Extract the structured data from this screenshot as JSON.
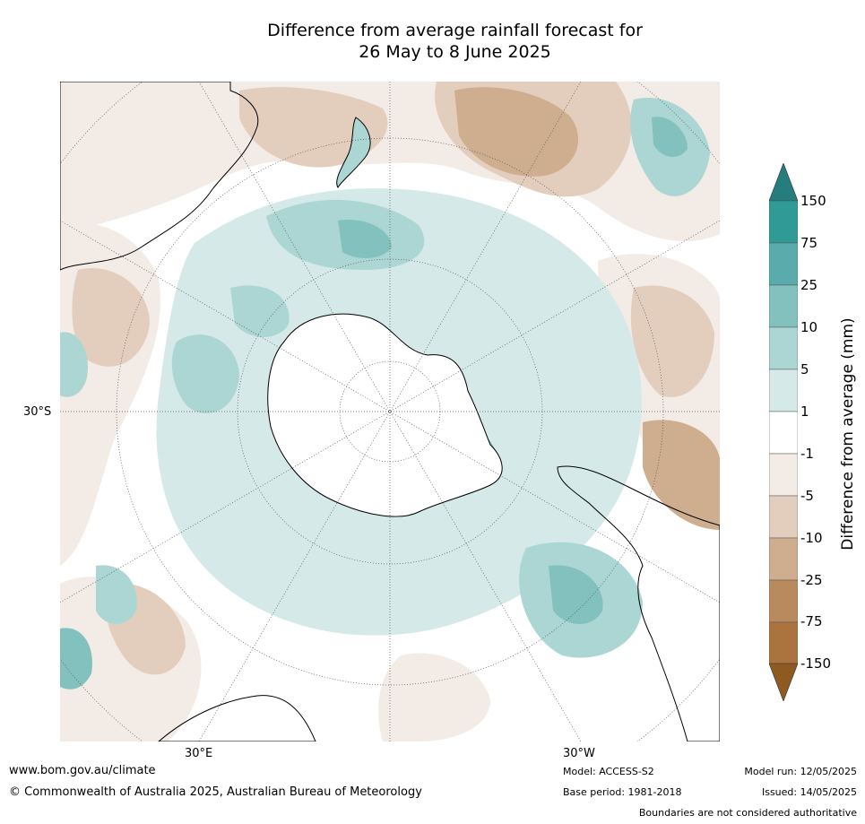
{
  "title_line1": "Difference from average rainfall forecast for",
  "title_line2": "26 May to 8 June 2025",
  "axis_labels": {
    "lat_left": "30°S",
    "lon_bottom_left": "30°E",
    "lon_bottom_right": "30°W"
  },
  "legend": {
    "title": "Difference from average (mm)",
    "ticks": [
      "150",
      "75",
      "25",
      "10",
      "5",
      "1",
      "-1",
      "-5",
      "-10",
      "-25",
      "-75",
      "-150"
    ],
    "bands": [
      {
        "range": ">150",
        "color": "#267d7d"
      },
      {
        "range": "75 to 150",
        "color": "#2f9a96"
      },
      {
        "range": "25 to 75",
        "color": "#5aabab"
      },
      {
        "range": "10 to 25",
        "color": "#83c1bf"
      },
      {
        "range": "5 to 10",
        "color": "#acd6d4"
      },
      {
        "range": "1 to 5",
        "color": "#d5e9e8"
      },
      {
        "range": "-1 to 1",
        "color": "#ffffff"
      },
      {
        "range": "-5 to -1",
        "color": "#f3ebe5"
      },
      {
        "range": "-10 to -5",
        "color": "#e3cebe"
      },
      {
        "range": "-25 to -10",
        "color": "#cfae8f"
      },
      {
        "range": "-75 to -25",
        "color": "#b98a5e"
      },
      {
        "range": "-150 to -75",
        "color": "#ab743f"
      },
      {
        "range": "<-150",
        "color": "#8f5a22"
      }
    ]
  },
  "footer": {
    "url": "www.bom.gov.au/climate",
    "copyright": "© Commonwealth of Australia 2025, Australian Bureau of Meteorology",
    "model": "Model: ACCESS-S2",
    "base_period": "Base period: 1981-2018",
    "model_run": "Model run: 12/05/2025",
    "issued": "Issued: 14/05/2025",
    "disclaimer": "Boundaries are not considered authoritative"
  }
}
